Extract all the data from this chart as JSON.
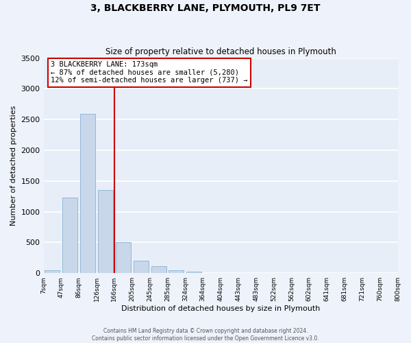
{
  "title": "3, BLACKBERRY LANE, PLYMOUTH, PL9 7ET",
  "subtitle": "Size of property relative to detached houses in Plymouth",
  "xlabel": "Distribution of detached houses by size in Plymouth",
  "ylabel": "Number of detached properties",
  "bin_labels": [
    "7sqm",
    "47sqm",
    "86sqm",
    "126sqm",
    "166sqm",
    "205sqm",
    "245sqm",
    "285sqm",
    "324sqm",
    "364sqm",
    "404sqm",
    "443sqm",
    "483sqm",
    "522sqm",
    "562sqm",
    "602sqm",
    "641sqm",
    "681sqm",
    "721sqm",
    "760sqm",
    "800sqm"
  ],
  "bar_values": [
    50,
    1230,
    2590,
    1350,
    500,
    200,
    110,
    50,
    30,
    5,
    5,
    0,
    0,
    0,
    0,
    0,
    0,
    0,
    0,
    0
  ],
  "bar_color": "#c8d8ea",
  "bar_edge_color": "#90b8d8",
  "bg_color": "#e8eef8",
  "grid_color": "#ffffff",
  "vline_x": 4.0,
  "vline_color": "#cc0000",
  "annotation_box_edge": "#cc0000",
  "annotation_line1": "3 BLACKBERRY LANE: 173sqm",
  "annotation_line2": "← 87% of detached houses are smaller (5,280)",
  "annotation_line3": "12% of semi-detached houses are larger (737) →",
  "footer_line1": "Contains HM Land Registry data © Crown copyright and database right 2024.",
  "footer_line2": "Contains public sector information licensed under the Open Government Licence v3.0.",
  "ylim": [
    0,
    3500
  ],
  "yticks": [
    0,
    500,
    1000,
    1500,
    2000,
    2500,
    3000,
    3500
  ]
}
